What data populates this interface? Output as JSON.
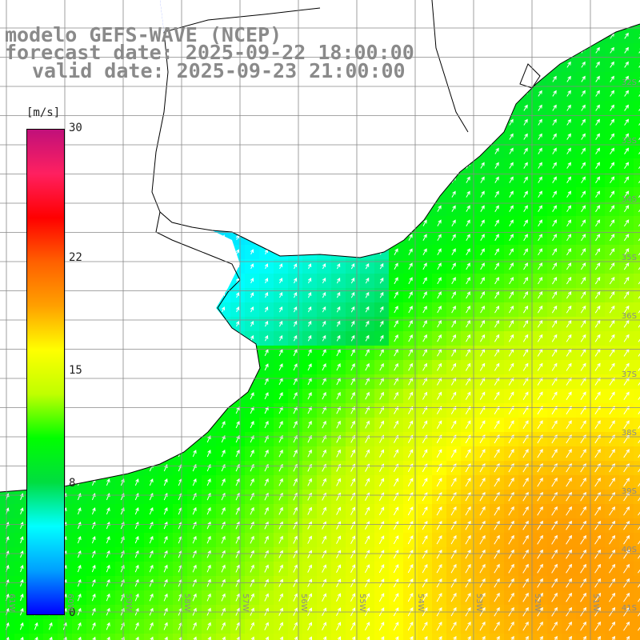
{
  "title": {
    "line1": "modelo GEFS-WAVE (NCEP)",
    "line2": "forecast date: 2025-09-22 18:00:00",
    "line3": "valid date: 2025-09-23 21:00:00"
  },
  "colorbar": {
    "unit": "[m/s]",
    "min": 0,
    "max": 30,
    "ticks": [
      {
        "value": 30,
        "label": "30"
      },
      {
        "value": 22,
        "label": "22"
      },
      {
        "value": 15,
        "label": "15"
      },
      {
        "value": 8,
        "label": "8"
      },
      {
        "value": 0,
        "label": "0"
      }
    ],
    "colors": [
      "#0000ff",
      "#00a0ff",
      "#00ffff",
      "#00dd40",
      "#00ff00",
      "#c0ff00",
      "#ffff00",
      "#ffa000",
      "#ff6000",
      "#ff0000",
      "#ff2060",
      "#c0107a"
    ]
  },
  "map": {
    "lon_range": [
      -62,
      -50
    ],
    "lat_range": [
      -41.5,
      -32
    ],
    "lat_labels": [
      "32S",
      "33S",
      "34S",
      "35S",
      "36S",
      "37S",
      "38S",
      "39S",
      "40S",
      "41S"
    ],
    "lon_labels": [
      "61W",
      "60W",
      "59W",
      "58W",
      "57W",
      "56W",
      "55W",
      "54W",
      "53W",
      "52W",
      "51W"
    ],
    "land_color": "#ffffff",
    "grid_color": "#888888",
    "arrow_color": "#ffffff"
  }
}
